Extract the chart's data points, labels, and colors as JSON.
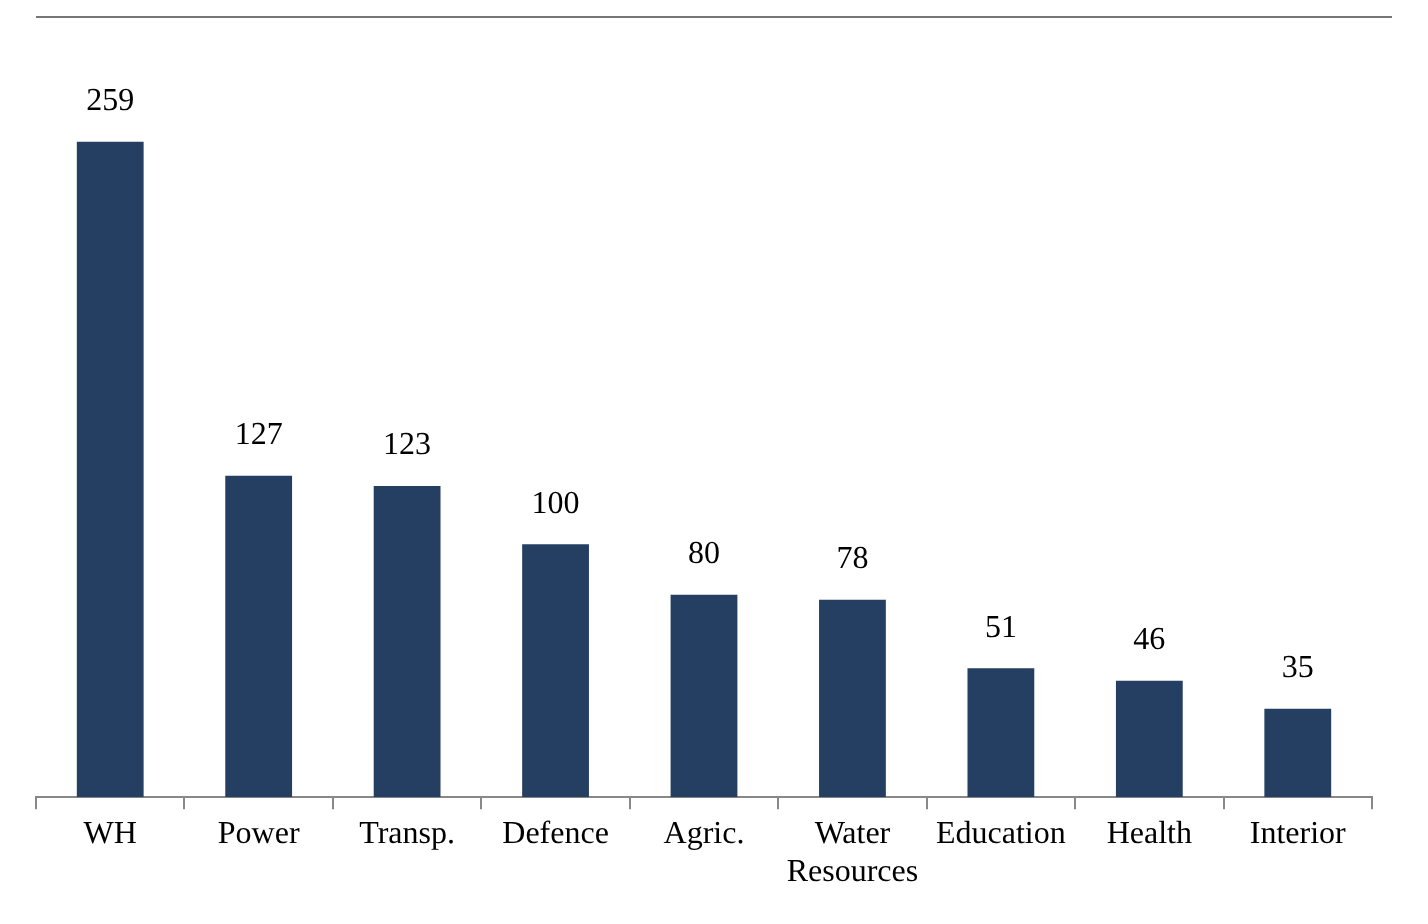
{
  "chart_data": {
    "type": "bar",
    "categories": [
      "WH",
      "Power",
      "Transp.",
      "Defence",
      "Agric.",
      "Water Resources",
      "Education",
      "Health",
      "Interior"
    ],
    "values": [
      259,
      127,
      123,
      100,
      80,
      78,
      51,
      46,
      35
    ],
    "color": "#243f61",
    "data_labels": true,
    "grid": false,
    "legend": false
  }
}
